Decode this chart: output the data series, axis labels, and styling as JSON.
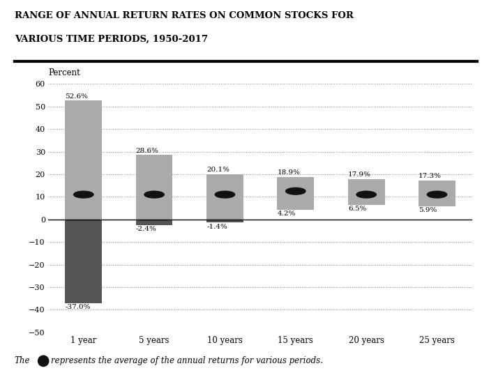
{
  "title_line1": "RANGE OF ANNUAL RETURN RATES ON COMMON STOCKS FOR",
  "title_line2": "VARIOUS TIME PERIODS, 1950-2017",
  "ylabel": "Percent",
  "categories": [
    "1 year",
    "5 years",
    "10 years",
    "15 years",
    "20 years",
    "25 years"
  ],
  "top_values": [
    52.6,
    28.6,
    20.1,
    18.9,
    17.9,
    17.3
  ],
  "bottom_values": [
    -37.0,
    -2.4,
    -1.4,
    4.2,
    6.5,
    5.9
  ],
  "avg_values": [
    11.0,
    11.0,
    11.0,
    12.5,
    11.0,
    11.0
  ],
  "bar_color_light": "#aaaaaa",
  "bar_color_dark": "#555555",
  "avg_marker_color": "#111111",
  "ylim_min": -50,
  "ylim_max": 65,
  "yticks": [
    -50,
    -40,
    -30,
    -20,
    -10,
    0,
    10,
    20,
    30,
    40,
    50,
    60
  ],
  "background_color": "#ffffff"
}
